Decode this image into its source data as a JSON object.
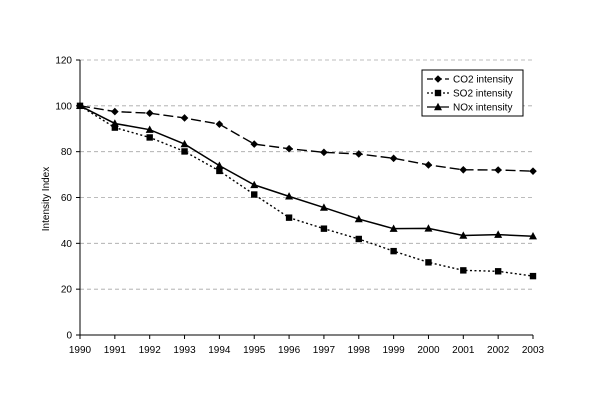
{
  "chart_data": {
    "type": "line",
    "title": "",
    "xlabel": "",
    "ylabel": "Intensity Index",
    "ylim": [
      0,
      120
    ],
    "yticks": [
      0,
      20,
      40,
      60,
      80,
      100,
      120
    ],
    "grid": "horizontal dashed",
    "legend_position": "top-right",
    "categories": [
      "1990",
      "1991",
      "1992",
      "1993",
      "1994",
      "1995",
      "1996",
      "1997",
      "1998",
      "1999",
      "2000",
      "2001",
      "2002",
      "2003"
    ],
    "series": [
      {
        "name": "CO2 intensity",
        "marker": "diamond",
        "line_style": "long-dash",
        "color": "#000000",
        "values": [
          100,
          97.5,
          96.8,
          94.7,
          92,
          83.3,
          81.3,
          79.7,
          79,
          77.1,
          74.2,
          72.1,
          72,
          71.5
        ]
      },
      {
        "name": "SO2 intensity",
        "marker": "square",
        "line_style": "dotted",
        "color": "#000000",
        "values": [
          100,
          90.5,
          86.2,
          80.1,
          71.6,
          61.3,
          51.2,
          46.4,
          41.9,
          36.6,
          31.7,
          28.2,
          27.8,
          25.7
        ]
      },
      {
        "name": "NOx intensity",
        "marker": "triangle",
        "line_style": "solid",
        "color": "#000000",
        "values": [
          100,
          92.3,
          89.6,
          83.3,
          73.9,
          65.5,
          60.5,
          55.6,
          50.6,
          46.4,
          46.5,
          43.4,
          43.8,
          43.1
        ]
      }
    ]
  }
}
